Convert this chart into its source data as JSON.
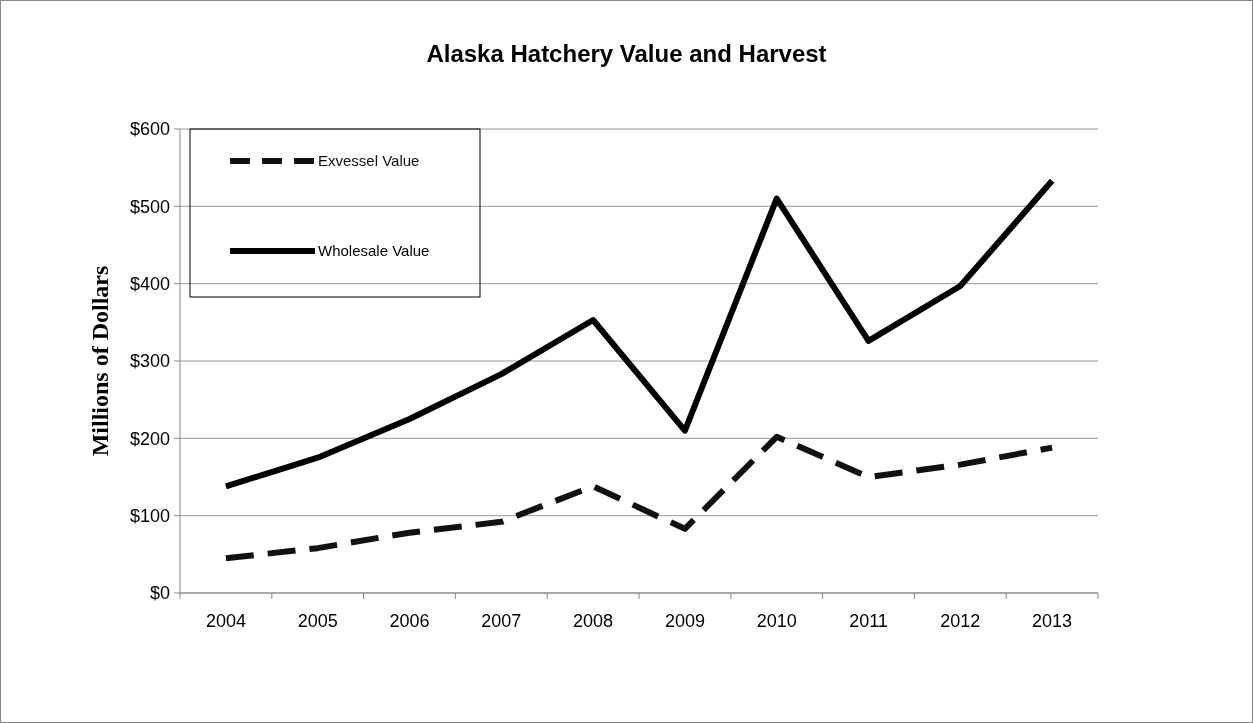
{
  "chart_data": {
    "type": "line",
    "title": "Alaska Hatchery Value and Harvest",
    "ylabel": "Millions of Dollars",
    "categories": [
      "2004",
      "2005",
      "2006",
      "2007",
      "2008",
      "2009",
      "2010",
      "2011",
      "2012",
      "2013"
    ],
    "series": [
      {
        "name": "Exvessel Value",
        "color": "#111111",
        "line_style": "dashed",
        "values": [
          45,
          58,
          78,
          92,
          138,
          83,
          202,
          150,
          166,
          188
        ]
      },
      {
        "name": "Wholesale Value",
        "color": "#000000",
        "line_style": "solid",
        "values": [
          138,
          175,
          225,
          283,
          353,
          210,
          510,
          326,
          397,
          533
        ]
      }
    ],
    "ylim": [
      0,
      600
    ],
    "yticks": [
      {
        "value": 0,
        "label": "$0"
      },
      {
        "value": 100,
        "label": "$100"
      },
      {
        "value": 200,
        "label": "$200"
      },
      {
        "value": 300,
        "label": "$300"
      },
      {
        "value": 400,
        "label": "$400"
      },
      {
        "value": 500,
        "label": "$500"
      },
      {
        "value": 600,
        "label": "$600"
      }
    ],
    "grid": "y",
    "legend": "top left",
    "marker": "none"
  }
}
